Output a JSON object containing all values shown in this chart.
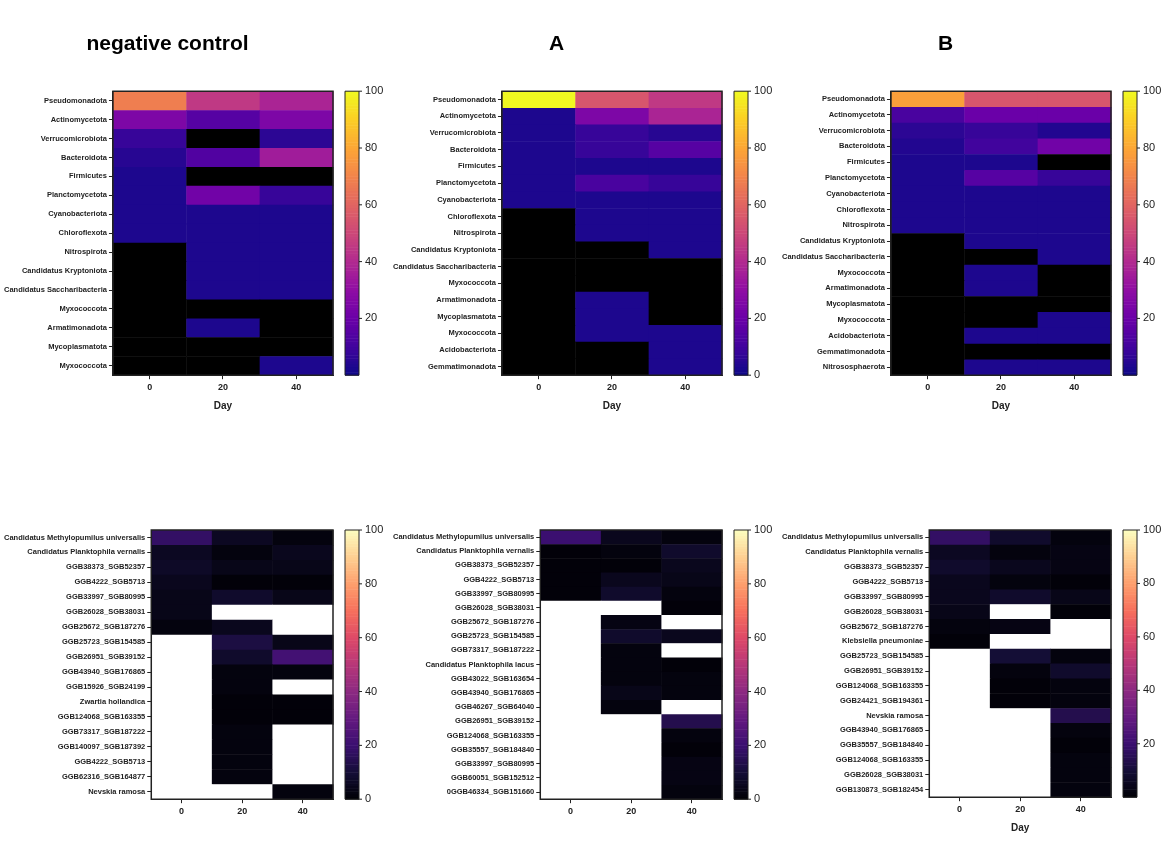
{
  "chart_data": [
    {
      "type": "heatmap",
      "title": "negative control",
      "xlabel": "Day",
      "categories": [
        "0",
        "20",
        "40"
      ],
      "y_categories": [
        "Pseudomonadota",
        "Actinomycetota",
        "Verrucomicrobiota",
        "Bacteroidota",
        "Firmicutes",
        "Planctomycetota",
        "Cyanobacteriota",
        "Chloroflexota",
        "Nitrospirota",
        "Candidatus Kryptoniota",
        "Candidatus Saccharibacteria",
        "Myxococcota",
        "Armatimonadota",
        "Mycoplasmatota",
        "Myxococcota"
      ],
      "cells": [
        [
          68,
          45,
          38
        ],
        [
          25,
          15,
          25
        ],
        [
          8,
          null,
          6
        ],
        [
          5,
          14,
          35
        ],
        [
          3,
          null,
          null
        ],
        [
          3,
          22,
          8
        ],
        [
          3,
          3,
          3
        ],
        [
          3,
          3,
          3
        ],
        [
          null,
          3,
          3
        ],
        [
          null,
          3,
          3
        ],
        [
          null,
          3,
          3
        ],
        [
          null,
          null,
          null
        ],
        [
          null,
          3,
          null
        ],
        [
          null,
          null,
          null
        ],
        [
          null,
          null,
          3
        ]
      ],
      "clim": [
        0,
        100
      ],
      "cticks": [
        20,
        40,
        60,
        80,
        100
      ],
      "colors": [
        "#0d0887",
        "#41049d",
        "#6a00a8",
        "#8f0da4",
        "#b12a90",
        "#cc4778",
        "#e16462",
        "#f2844b",
        "#fca636",
        "#fcce25",
        "#f0f921"
      ],
      "color": "#000000"
    },
    {
      "type": "heatmap",
      "title": "A",
      "xlabel": "Day",
      "categories": [
        "0",
        "20",
        "40"
      ],
      "y_categories": [
        "Pseudomonadota",
        "Actinomycetota",
        "Verrucomicrobiota",
        "Bacteroidota",
        "Firmicutes",
        "Planctomycetota",
        "Cyanobacteriota",
        "Chloroflexota",
        "Nitrospirota",
        "Candidatus Kryptoniota",
        "Candidatus Saccharibacteria",
        "Myxococcota",
        "Armatimonadota",
        "Mycoplasmatota",
        "Myxococcota",
        "Acidobacteriota",
        "Gemmatimonadota"
      ],
      "cells": [
        [
          100,
          55,
          45
        ],
        [
          3,
          25,
          38
        ],
        [
          3,
          8,
          5
        ],
        [
          3,
          8,
          15
        ],
        [
          3,
          3,
          3
        ],
        [
          3,
          12,
          8
        ],
        [
          3,
          3,
          3
        ],
        [
          null,
          3,
          3
        ],
        [
          null,
          3,
          3
        ],
        [
          null,
          null,
          3
        ],
        [
          null,
          null,
          null
        ],
        [
          null,
          null,
          null
        ],
        [
          null,
          3,
          null
        ],
        [
          null,
          3,
          null
        ],
        [
          null,
          3,
          3
        ],
        [
          null,
          null,
          3
        ],
        [
          null,
          null,
          3
        ]
      ],
      "clim": [
        0,
        100
      ],
      "cticks": [
        0,
        20,
        40,
        60,
        80,
        100
      ],
      "colors": [
        "#0d0887",
        "#41049d",
        "#6a00a8",
        "#8f0da4",
        "#b12a90",
        "#cc4778",
        "#e16462",
        "#f2844b",
        "#fca636",
        "#fcce25",
        "#f0f921"
      ],
      "color": "#000000"
    },
    {
      "type": "heatmap",
      "title": "B",
      "xlabel": "Day",
      "categories": [
        "0",
        "20",
        "40"
      ],
      "y_categories": [
        "Pseudomonadota",
        "Actinomycetota",
        "Verrucomicrobiota",
        "Bacteroidota",
        "Firmicutes",
        "Planctomycetota",
        "Cyanobacteriota",
        "Chloroflexota",
        "Nitrospirota",
        "Candidatus Kryptoniota",
        "Candidatus Saccharibacteria",
        "Myxococcota",
        "Armatimonadota",
        "Mycoplasmatota",
        "Myxococcota",
        "Acidobacteriota",
        "Gemmatimonadota",
        "Nitrososphaerota"
      ],
      "cells": [
        [
          78,
          55,
          55
        ],
        [
          12,
          20,
          20
        ],
        [
          6,
          8,
          4
        ],
        [
          4,
          10,
          22
        ],
        [
          3,
          3,
          null
        ],
        [
          3,
          15,
          8
        ],
        [
          3,
          3,
          3
        ],
        [
          3,
          3,
          3
        ],
        [
          3,
          3,
          3
        ],
        [
          null,
          3,
          3
        ],
        [
          null,
          null,
          3
        ],
        [
          null,
          3,
          null
        ],
        [
          null,
          3,
          null
        ],
        [
          null,
          null,
          null
        ],
        [
          null,
          null,
          3
        ],
        [
          null,
          3,
          3
        ],
        [
          null,
          null,
          null
        ],
        [
          null,
          3,
          3
        ]
      ],
      "clim": [
        0,
        100
      ],
      "cticks": [
        20,
        40,
        60,
        80,
        100
      ],
      "colors": [
        "#0d0887",
        "#41049d",
        "#6a00a8",
        "#8f0da4",
        "#b12a90",
        "#cc4778",
        "#e16462",
        "#f2844b",
        "#fca636",
        "#fcce25",
        "#f0f921"
      ],
      "color": "#000000"
    },
    {
      "type": "heatmap",
      "categories": [
        "0",
        "20",
        "40"
      ],
      "y_categories": [
        "Candidatus Methylopumilus universalis",
        "Candidatus Planktophila vernalis",
        "GGB38373_SGB52357",
        "GGB4222_SGB5713",
        "GGB33997_SGB80995",
        "GGB26028_SGB38031",
        "GGB25672_SGB187276",
        "GGB25723_SGB154585",
        "GGB26951_SGB39152",
        "GGB43940_SGB176865",
        "GGB15926_SGB24199",
        "Zwartia hollandica",
        "GGB124068_SGB163355",
        "GGB73317_SGB187222",
        "GGB140097_SGB187392",
        "GGB4222_SGB5713",
        "GGB62316_SGB164877",
        "Nevskia ramosa"
      ],
      "cells": [
        [
          18,
          6,
          2
        ],
        [
          6,
          2,
          5
        ],
        [
          7,
          4,
          4
        ],
        [
          5,
          1,
          1
        ],
        [
          4,
          8,
          4
        ],
        [
          4,
          null,
          null
        ],
        [
          2,
          5,
          null
        ],
        [
          null,
          12,
          4
        ],
        [
          null,
          8,
          22
        ],
        [
          null,
          2,
          2
        ],
        [
          null,
          2,
          null
        ],
        [
          null,
          1,
          1
        ],
        [
          null,
          1,
          1
        ],
        [
          null,
          2,
          null
        ],
        [
          null,
          2,
          null
        ],
        [
          null,
          2,
          null
        ],
        [
          null,
          2,
          null
        ],
        [
          null,
          null,
          2
        ]
      ],
      "clim": [
        0,
        100
      ],
      "cticks": [
        0,
        20,
        40,
        60,
        80,
        100
      ],
      "colors": [
        "#000004",
        "#140e36",
        "#3b0f70",
        "#641a80",
        "#8c2981",
        "#b73779",
        "#de4968",
        "#f7705c",
        "#fe9f6d",
        "#fecf92",
        "#fcfdbf"
      ],
      "color": "#ffffff"
    },
    {
      "type": "heatmap",
      "categories": [
        "0",
        "20",
        "40"
      ],
      "y_categories": [
        "Candidatus Methylopumilus universalis",
        "Candidatus Planktophila vernalis",
        "GGB38373_SGB52357",
        "GGB4222_SGB5713",
        "GGB33997_SGB80995",
        "GGB26028_SGB38031",
        "GGB25672_SGB187276",
        "GGB25723_SGB154585",
        "GGB73317_SGB187222",
        "Candidatus Planktophila lacus",
        "GGB43022_SGB163654",
        "GGB43940_SGB176865",
        "GGB46267_SGB64040",
        "GGB26951_SGB39152",
        "GGB124068_SGB163355",
        "GGB35557_SGB184840",
        "GGB33997_SGB80995",
        "GGB60051_SGB152512",
        "0GGB46334_SGB151660"
      ],
      "cells": [
        [
          20,
          5,
          2
        ],
        [
          1,
          2,
          8
        ],
        [
          1,
          1,
          5
        ],
        [
          1,
          5,
          4
        ],
        [
          1,
          8,
          2
        ],
        [
          null,
          null,
          1
        ],
        [
          null,
          3,
          null
        ],
        [
          null,
          8,
          5
        ],
        [
          null,
          2,
          null
        ],
        [
          null,
          2,
          1
        ],
        [
          null,
          2,
          2
        ],
        [
          null,
          4,
          2
        ],
        [
          null,
          2,
          null
        ],
        [
          null,
          null,
          14
        ],
        [
          null,
          null,
          2
        ],
        [
          null,
          null,
          1
        ],
        [
          null,
          null,
          3
        ],
        [
          null,
          null,
          3
        ],
        [
          null,
          null,
          2
        ]
      ],
      "clim": [
        0,
        100
      ],
      "cticks": [
        0,
        20,
        40,
        60,
        80,
        100
      ],
      "colors": [
        "#000004",
        "#140e36",
        "#3b0f70",
        "#641a80",
        "#8c2981",
        "#b73779",
        "#de4968",
        "#f7705c",
        "#fe9f6d",
        "#fecf92",
        "#fcfdbf"
      ],
      "color": "#ffffff"
    },
    {
      "type": "heatmap",
      "xlabel": "Day",
      "categories": [
        "0",
        "20",
        "40"
      ],
      "y_categories": [
        "Candidatus Methylopumilus universalis",
        "Candidatus Planktophila vernalis",
        "GGB38373_SGB52357",
        "GGB4222_SGB5713",
        "GGB33997_SGB80995",
        "GGB26028_SGB38031",
        "GGB25672_SGB187276",
        "Klebsiella pneumoniae",
        "GGB25723_SGB154585",
        "GGB26951_SGB39152",
        "GGB124068_SGB163355",
        "GGB24421_SGB194361",
        "Nevskia ramosa",
        "GGB43940_SGB176865",
        "GGB35557_SGB184840",
        "GGB124068_SGB163355",
        "GGB26028_SGB38031",
        "GGB130873_SGB182454"
      ],
      "cells": [
        [
          18,
          8,
          2
        ],
        [
          6,
          2,
          3
        ],
        [
          8,
          5,
          3
        ],
        [
          5,
          2,
          1
        ],
        [
          5,
          8,
          4
        ],
        [
          4,
          null,
          1
        ],
        [
          2,
          3,
          null
        ],
        [
          1,
          null,
          null
        ],
        [
          null,
          10,
          2
        ],
        [
          null,
          2,
          8
        ],
        [
          null,
          1,
          2
        ],
        [
          null,
          1,
          2
        ],
        [
          null,
          null,
          14
        ],
        [
          null,
          null,
          2
        ],
        [
          null,
          null,
          1
        ],
        [
          null,
          null,
          2
        ],
        [
          null,
          null,
          2
        ],
        [
          null,
          null,
          2
        ]
      ],
      "clim": [
        0,
        100
      ],
      "cticks": [
        20,
        40,
        60,
        80,
        100
      ],
      "colors": [
        "#000004",
        "#140e36",
        "#3b0f70",
        "#641a80",
        "#8c2981",
        "#b73779",
        "#de4968",
        "#f7705c",
        "#fe9f6d",
        "#fecf92",
        "#fcfdbf"
      ],
      "color": "#ffffff"
    }
  ]
}
